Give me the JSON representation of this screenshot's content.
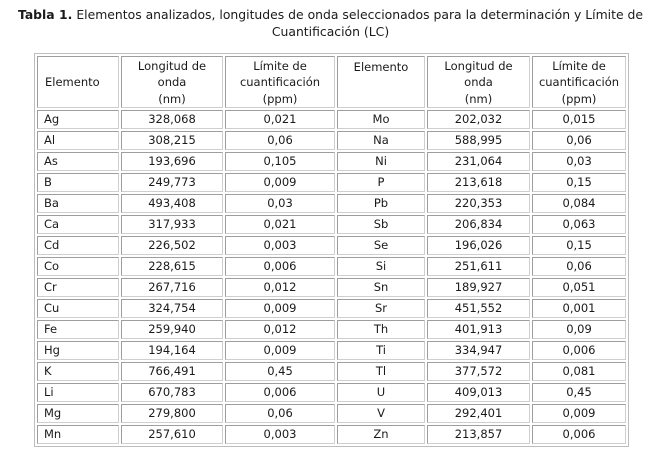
{
  "caption": {
    "label": "Tabla 1.",
    "text": "Elementos analizados, longitudes de onda seleccionados para la determinación y Límite de Cuantificación (LC)"
  },
  "table": {
    "headers": {
      "element": "Elemento",
      "wavelength": "Longitud de\nonda\n(nm)",
      "loq": "Límite de\ncuantificación\n(ppm)"
    },
    "rows": [
      {
        "l": [
          "Ag",
          "328,068",
          "0,021"
        ],
        "r": [
          "Mo",
          "202,032",
          "0,015"
        ]
      },
      {
        "l": [
          "Al",
          "308,215",
          "0,06"
        ],
        "r": [
          "Na",
          "588,995",
          "0,06"
        ]
      },
      {
        "l": [
          "As",
          "193,696",
          "0,105"
        ],
        "r": [
          "Ni",
          "231,064",
          "0,03"
        ]
      },
      {
        "l": [
          "B",
          "249,773",
          "0,009"
        ],
        "r": [
          "P",
          "213,618",
          "0,15"
        ]
      },
      {
        "l": [
          "Ba",
          "493,408",
          "0,03"
        ],
        "r": [
          "Pb",
          "220,353",
          "0,084"
        ]
      },
      {
        "l": [
          "Ca",
          "317,933",
          "0,021"
        ],
        "r": [
          "Sb",
          "206,834",
          "0,063"
        ]
      },
      {
        "l": [
          "Cd",
          "226,502",
          "0,003"
        ],
        "r": [
          "Se",
          "196,026",
          "0,15"
        ]
      },
      {
        "l": [
          "Co",
          "228,615",
          "0,006"
        ],
        "r": [
          "Si",
          "251,611",
          "0,06"
        ]
      },
      {
        "l": [
          "Cr",
          "267,716",
          "0,012"
        ],
        "r": [
          "Sn",
          "189,927",
          "0,051"
        ]
      },
      {
        "l": [
          "Cu",
          "324,754",
          "0,009"
        ],
        "r": [
          "Sr",
          "451,552",
          "0,001"
        ]
      },
      {
        "l": [
          "Fe",
          "259,940",
          "0,012"
        ],
        "r": [
          "Th",
          "401,913",
          "0,09"
        ]
      },
      {
        "l": [
          "Hg",
          "194,164",
          "0,009"
        ],
        "r": [
          "Ti",
          "334,947",
          "0,006"
        ]
      },
      {
        "l": [
          "K",
          "766,491",
          "0,45"
        ],
        "r": [
          "Tl",
          "377,572",
          "0,081"
        ]
      },
      {
        "l": [
          "Li",
          "670,783",
          "0,006"
        ],
        "r": [
          "U",
          "409,013",
          "0,45"
        ]
      },
      {
        "l": [
          "Mg",
          "279,800",
          "0,06"
        ],
        "r": [
          "V",
          "292,401",
          "0,009"
        ]
      },
      {
        "l": [
          "Mn",
          "257,610",
          "0,003"
        ],
        "r": [
          "Zn",
          "213,857",
          "0,006"
        ]
      }
    ]
  },
  "colors": {
    "cell_border": "#9e9e9e",
    "outer_border": "#bdbdbd",
    "text": "#1a1a1a",
    "background": "#ffffff"
  }
}
